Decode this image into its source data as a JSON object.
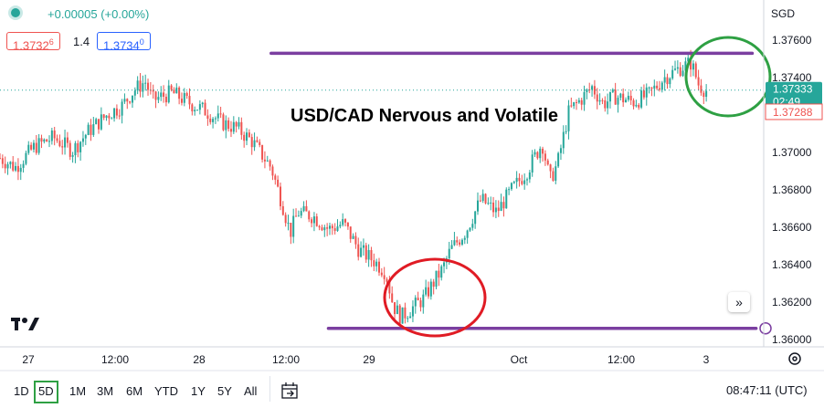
{
  "header": {
    "change": "+0.00005 (+0.00%)",
    "bid_main": "1.3732",
    "bid_sup": "6",
    "spread": "1.4",
    "ask_main": "1.3734",
    "ask_sup": "0"
  },
  "currency": "SGD",
  "colors": {
    "up": "#26a69a",
    "down": "#ef5350",
    "level_line": "#7b3fa0",
    "circle_green": "#2ea043",
    "circle_red": "#e01b24",
    "timeframe_active": "#2ea043"
  },
  "chart_data": {
    "type": "candlestick",
    "title": "USD/CAD Nervous and Volatile",
    "ylim": [
      1.3597,
      1.3772
    ],
    "y_ticks": [
      "1.37600",
      "1.37400",
      "1.37200",
      "1.37000",
      "1.36800",
      "1.36600",
      "1.36400",
      "1.36200",
      "1.36000"
    ],
    "y_tick_values": [
      1.376,
      1.374,
      1.372,
      1.37,
      1.368,
      1.366,
      1.364,
      1.362,
      1.36
    ],
    "x_ticks": [
      "27",
      "12:00",
      "28",
      "12:00",
      "29",
      "Oct",
      "12:00",
      "3"
    ],
    "current_price": "1.37333",
    "current_price_value": 1.37333,
    "countdown": "02:49",
    "ask_price": "1.37288",
    "ask_price_value": 1.37288,
    "levels": [
      {
        "value": 1.3753,
        "from": 0.355,
        "to": 0.985
      },
      {
        "value": 1.3606,
        "from": 0.43,
        "to": 0.99
      }
    ],
    "price_path": [
      [
        0.0,
        1.3697
      ],
      [
        0.02,
        1.3692
      ],
      [
        0.045,
        1.3703
      ],
      [
        0.07,
        1.3708
      ],
      [
        0.095,
        1.3701
      ],
      [
        0.115,
        1.3711
      ],
      [
        0.14,
        1.372
      ],
      [
        0.16,
        1.3725
      ],
      [
        0.175,
        1.3733
      ],
      [
        0.19,
        1.3738
      ],
      [
        0.2,
        1.3728
      ],
      [
        0.225,
        1.3732
      ],
      [
        0.25,
        1.3726
      ],
      [
        0.27,
        1.3722
      ],
      [
        0.29,
        1.3716
      ],
      [
        0.31,
        1.3713
      ],
      [
        0.33,
        1.3706
      ],
      [
        0.355,
        1.3692
      ],
      [
        0.37,
        1.3672
      ],
      [
        0.38,
        1.3657
      ],
      [
        0.39,
        1.3668
      ],
      [
        0.41,
        1.3666
      ],
      [
        0.43,
        1.3659
      ],
      [
        0.45,
        1.3662
      ],
      [
        0.47,
        1.3648
      ],
      [
        0.49,
        1.3642
      ],
      [
        0.505,
        1.3636
      ],
      [
        0.515,
        1.3618
      ],
      [
        0.525,
        1.3612
      ],
      [
        0.54,
        1.3617
      ],
      [
        0.555,
        1.3622
      ],
      [
        0.57,
        1.3632
      ],
      [
        0.58,
        1.3638
      ],
      [
        0.59,
        1.3648
      ],
      [
        0.61,
        1.3658
      ],
      [
        0.63,
        1.3675
      ],
      [
        0.65,
        1.3668
      ],
      [
        0.67,
        1.368
      ],
      [
        0.69,
        1.369
      ],
      [
        0.71,
        1.3705
      ],
      [
        0.72,
        1.3685
      ],
      [
        0.73,
        1.3694
      ],
      [
        0.745,
        1.3722
      ],
      [
        0.76,
        1.3728
      ],
      [
        0.775,
        1.3735
      ],
      [
        0.79,
        1.3726
      ],
      [
        0.805,
        1.373
      ],
      [
        0.83,
        1.3727
      ],
      [
        0.85,
        1.3731
      ],
      [
        0.87,
        1.374
      ],
      [
        0.89,
        1.3745
      ],
      [
        0.905,
        1.3748
      ],
      [
        0.915,
        1.3736
      ],
      [
        0.925,
        1.3733
      ]
    ]
  },
  "timeframes": [
    "1D",
    "5D",
    "1M",
    "3M",
    "6M",
    "YTD",
    "1Y",
    "5Y",
    "All"
  ],
  "active_timeframe": "5D",
  "clock": "08:47:11 (UTC)"
}
